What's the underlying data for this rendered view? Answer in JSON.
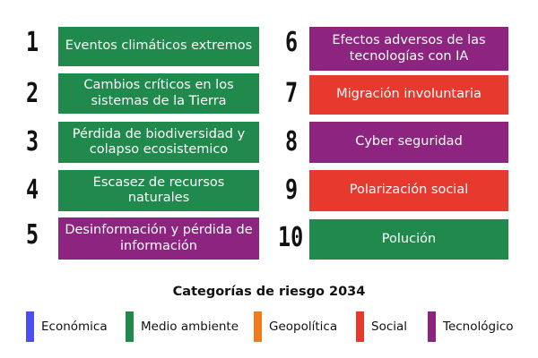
{
  "risks_left": [
    {
      "rank": "1",
      "label": "Eventos climáticos extremos",
      "category": "Medio ambiente"
    },
    {
      "rank": "2",
      "label": "Cambios críticos en los sistemas de la Tierra",
      "category": "Medio ambiente"
    },
    {
      "rank": "3",
      "label": "Pérdida de biodiversidad y colapso ecosistemico",
      "category": "Medio ambiente"
    },
    {
      "rank": "4",
      "label": "Escasez de recursos naturales",
      "category": "Medio ambiente"
    },
    {
      "rank": "5",
      "label": "Desinformación y pérdida de información",
      "category": "Tecnológico"
    }
  ],
  "risks_right": [
    {
      "rank": "6",
      "label": "Efectos adversos de las tecnologías con IA",
      "category": "Tecnológico"
    },
    {
      "rank": "7",
      "label": "Migración involuntaria",
      "category": "Social"
    },
    {
      "rank": "8",
      "label": "Cyber seguridad",
      "category": "Tecnológico"
    },
    {
      "rank": "9",
      "label": "Polarización social",
      "category": "Social"
    },
    {
      "rank": "10",
      "label": "Polución",
      "category": "Medio ambiente"
    }
  ],
  "legend": {
    "title": "Categorías de riesgo 2034",
    "items": [
      {
        "label": "Económica",
        "color": "#4a4ff2"
      },
      {
        "label": "Medio ambiente",
        "color": "#1f8a4c"
      },
      {
        "label": "Geopolítica",
        "color": "#f07a1c"
      },
      {
        "label": "Social",
        "color": "#e8392f"
      },
      {
        "label": "Tecnológico",
        "color": "#8d2480"
      }
    ]
  },
  "colors": {
    "medio_ambiente": "#1f8a4c",
    "tecnologico": "#8d2480",
    "social": "#e8392f"
  }
}
